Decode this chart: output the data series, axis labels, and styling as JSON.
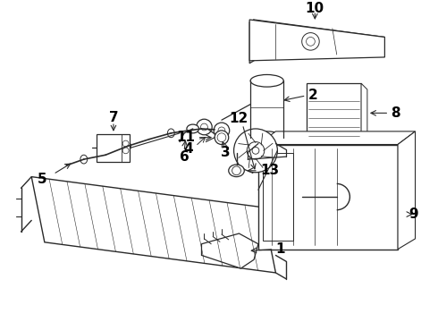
{
  "bg_color": "#ffffff",
  "line_color": "#2a2a2a",
  "label_color": "#000000",
  "figsize": [
    4.9,
    3.6
  ],
  "dpi": 100,
  "font_size": 10,
  "font_size_large": 11,
  "font_weight": "bold"
}
